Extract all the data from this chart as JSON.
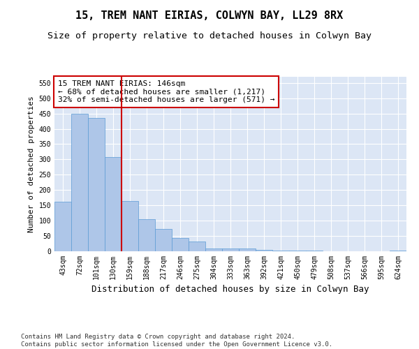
{
  "title": "15, TREM NANT EIRIAS, COLWYN BAY, LL29 8RX",
  "subtitle": "Size of property relative to detached houses in Colwyn Bay",
  "xlabel": "Distribution of detached houses by size in Colwyn Bay",
  "ylabel": "Number of detached properties",
  "categories": [
    "43sqm",
    "72sqm",
    "101sqm",
    "130sqm",
    "159sqm",
    "188sqm",
    "217sqm",
    "246sqm",
    "275sqm",
    "304sqm",
    "333sqm",
    "363sqm",
    "392sqm",
    "421sqm",
    "450sqm",
    "479sqm",
    "508sqm",
    "537sqm",
    "566sqm",
    "595sqm",
    "624sqm"
  ],
  "values": [
    163,
    450,
    435,
    307,
    165,
    106,
    73,
    44,
    32,
    10,
    10,
    10,
    5,
    2,
    2,
    2,
    1,
    1,
    1,
    1,
    3
  ],
  "bar_color": "#aec6e8",
  "bar_edge_color": "#5b9bd5",
  "vline_x": 3.5,
  "vline_color": "#cc0000",
  "annotation_line1": "15 TREM NANT EIRIAS: 146sqm",
  "annotation_line2": "← 68% of detached houses are smaller (1,217)",
  "annotation_line3": "32% of semi-detached houses are larger (571) →",
  "annotation_box_color": "#cc0000",
  "ylim": [
    0,
    570
  ],
  "yticks": [
    0,
    50,
    100,
    150,
    200,
    250,
    300,
    350,
    400,
    450,
    500,
    550
  ],
  "bg_color": "#dce6f5",
  "footer": "Contains HM Land Registry data © Crown copyright and database right 2024.\nContains public sector information licensed under the Open Government Licence v3.0.",
  "title_fontsize": 11,
  "subtitle_fontsize": 9.5,
  "xlabel_fontsize": 9,
  "ylabel_fontsize": 8,
  "tick_fontsize": 7,
  "annotation_fontsize": 8,
  "footer_fontsize": 6.5
}
